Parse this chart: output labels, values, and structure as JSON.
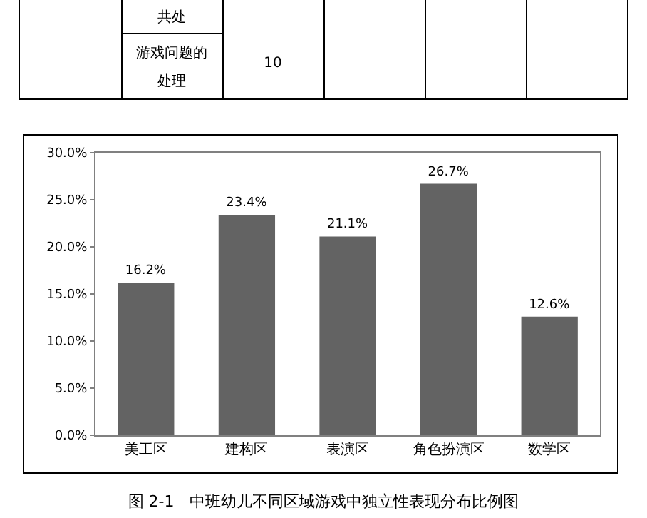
{
  "chart_data": {
    "type": "bar",
    "categories": [
      "美工区",
      "建构区",
      "表演区",
      "角色扮演区",
      "数学区"
    ],
    "values": [
      16.2,
      23.4,
      21.1,
      26.7,
      12.6
    ],
    "value_labels": [
      "16.2%",
      "23.4%",
      "21.1%",
      "26.7%",
      "12.6%"
    ],
    "color": "#636363",
    "ylim": [
      0,
      30
    ],
    "yticks": [
      {
        "value": 0,
        "label": "0.0%"
      },
      {
        "value": 5,
        "label": "5.0%"
      },
      {
        "value": 10,
        "label": "10.0%"
      },
      {
        "value": 15,
        "label": "15.0%"
      },
      {
        "value": 20,
        "label": "20.0%"
      },
      {
        "value": 25,
        "label": "25.0%"
      },
      {
        "value": 30,
        "label": "30.0%"
      }
    ],
    "grid": false,
    "annotations": [
      "共处",
      "游戏问题的处理",
      "10",
      "图 2-1　中班幼儿不同区域游戏中独立性表现分布比例图"
    ]
  }
}
